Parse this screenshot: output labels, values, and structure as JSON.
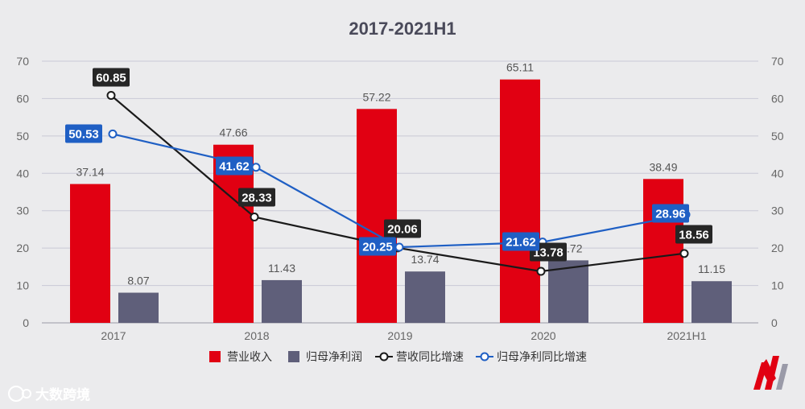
{
  "chart_data": {
    "type": "bar",
    "title": "2017-2021H1",
    "categories": [
      "2017",
      "2018",
      "2019",
      "2020",
      "2021H1"
    ],
    "ylim": [
      0,
      70
    ],
    "yticks": [
      0,
      10,
      20,
      30,
      40,
      50,
      60,
      70
    ],
    "y2lim": [
      0,
      70
    ],
    "grid": true,
    "legend_position": "bottom",
    "series": [
      {
        "name": "营业收入",
        "kind": "bar",
        "color": "#e10012",
        "values": [
          37.14,
          47.66,
          57.22,
          65.11,
          38.49
        ]
      },
      {
        "name": "归母净利润",
        "kind": "bar",
        "color": "#5f5f7a",
        "values": [
          8.07,
          11.43,
          13.74,
          16.72,
          11.15
        ]
      },
      {
        "name": "营收同比增速",
        "kind": "line",
        "color": "#1a1a1a",
        "label_bg": "#262626",
        "values": [
          60.85,
          28.33,
          20.06,
          13.78,
          18.56
        ]
      },
      {
        "name": "归母净利同比增速",
        "kind": "line",
        "color": "#1f5fc4",
        "label_bg": "#1f5fc4",
        "values": [
          50.53,
          41.62,
          20.25,
          21.62,
          28.96
        ]
      }
    ]
  },
  "watermark": {
    "text": "大数跨境"
  },
  "colors": {
    "background": "#ebebed",
    "grid": "#c9c9d6",
    "axis_text": "#666666"
  }
}
